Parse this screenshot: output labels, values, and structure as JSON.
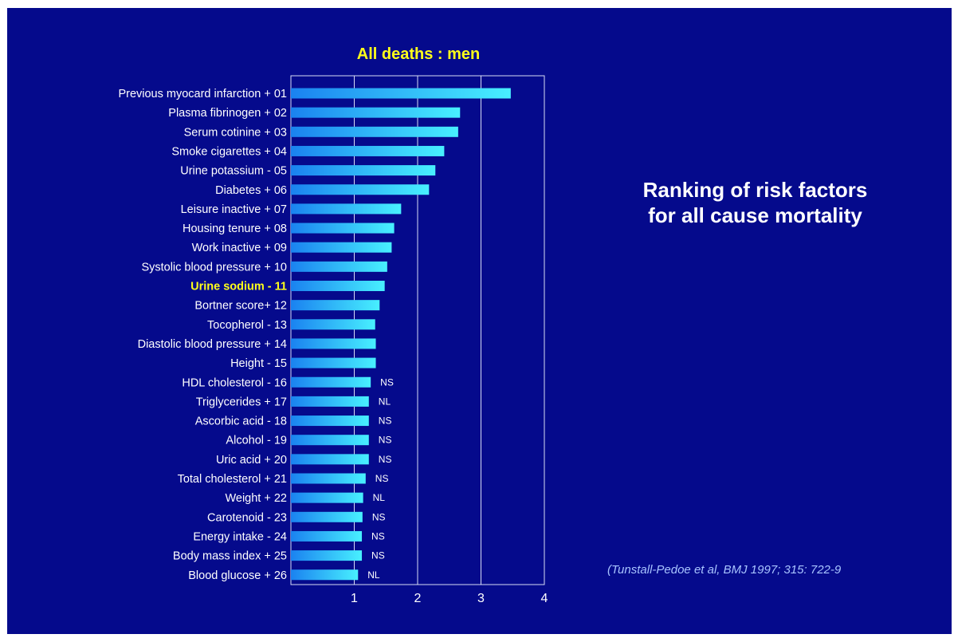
{
  "chart_data": {
    "type": "bar",
    "orientation": "horizontal",
    "title": "All deaths : men",
    "categories": [
      "Previous myocard infarction +  01",
      "Plasma fibrinogen + 02",
      "Serum cotinine + 03",
      "Smoke cigarettes + 04",
      "Urine potassium -  05",
      "Diabetes + 06",
      "Leisure inactive + 07",
      "Housing tenure +  08",
      "Work inactive + 09",
      "Systolic blood pressure +  10",
      "Urine sodium -  11",
      "Bortner score+  12",
      "Tocopherol -  13",
      "Diastolic blood pressure +  14",
      "Height -  15",
      "HDL cholesterol -  16",
      "Triglycerides + 17",
      "Ascorbic acid - 18",
      "Alcohol - 19",
      "Uric acid + 20",
      "Total cholesterol +  21",
      "Weight + 22",
      "Carotenoid - 23",
      "Energy intake -  24",
      "Body mass index + 25",
      "Blood glucose + 26"
    ],
    "values": [
      3.47,
      2.67,
      2.64,
      2.42,
      2.28,
      2.18,
      1.74,
      1.63,
      1.59,
      1.52,
      1.48,
      1.4,
      1.33,
      1.34,
      1.34,
      1.26,
      1.23,
      1.23,
      1.23,
      1.23,
      1.18,
      1.14,
      1.13,
      1.12,
      1.12,
      1.06
    ],
    "annotations": [
      "",
      "",
      "",
      "",
      "",
      "",
      "",
      "",
      "",
      "",
      "",
      "",
      "",
      "",
      "",
      "NS",
      "NL",
      "NS",
      "NS",
      "NS",
      "NS",
      "NL",
      "NS",
      "NS",
      "NS",
      "NL"
    ],
    "highlight_index": 10,
    "xlim": [
      0,
      4
    ],
    "xticks": [
      "1",
      "2",
      "3",
      "4"
    ],
    "gridlines_x": [
      1,
      2,
      3
    ],
    "colors": {
      "background": "#050a8c",
      "bar_start": "#1a82f0",
      "bar_end": "#48f0ff",
      "title": "#ffff1a",
      "label": "#ffffff",
      "highlight": "#ffff1a",
      "citation": "#a8c4ff"
    }
  },
  "side_title": {
    "line1": "Ranking of risk factors",
    "line2": "for all cause mortality"
  },
  "citation": "(Tunstall-Pedoe et al, BMJ 1997; 315: 722-9"
}
